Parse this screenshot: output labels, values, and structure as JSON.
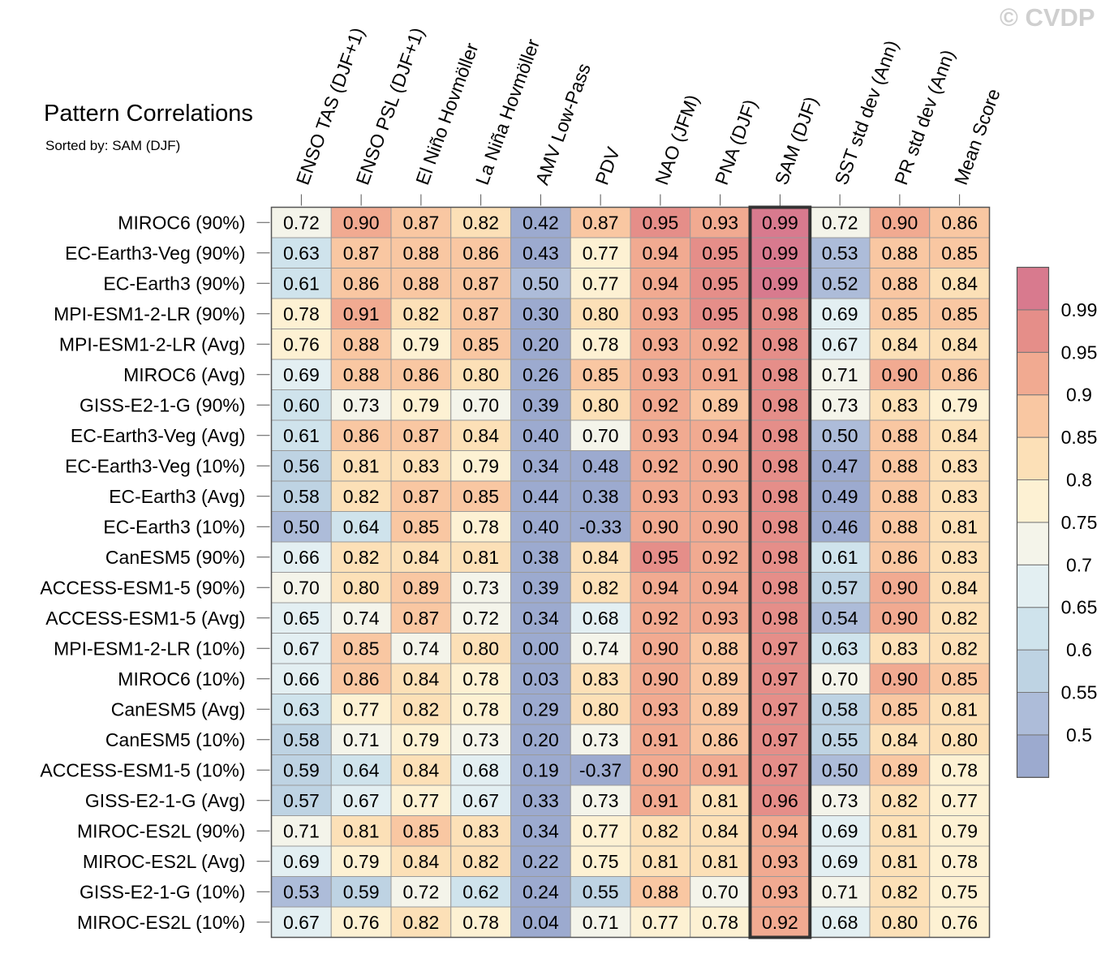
{
  "header": {
    "title": "Pattern Correlations",
    "subtitle": "Sorted by: SAM (DJF)",
    "watermark": "© CVDP"
  },
  "chart_data": {
    "type": "heatmap",
    "title": "Pattern Correlations",
    "subtitle": "Sorted by: SAM (DJF)",
    "columns": [
      "ENSO TAS (DJF+1)",
      "ENSO PSL (DJF+1)",
      "El Niño Hovmöller",
      "La Niña Hovmöller",
      "AMV Low-Pass",
      "PDV",
      "NAO (JFM)",
      "PNA (DJF)",
      "SAM (DJF)",
      "SST std dev (Ann)",
      "PR std dev (Ann)",
      "Mean Score"
    ],
    "highlighted_column": "SAM (DJF)",
    "rows": [
      "MIROC6 (90%)",
      "EC-Earth3-Veg (90%)",
      "EC-Earth3 (90%)",
      "MPI-ESM1-2-LR (90%)",
      "MPI-ESM1-2-LR (Avg)",
      "MIROC6 (Avg)",
      "GISS-E2-1-G (90%)",
      "EC-Earth3-Veg (Avg)",
      "EC-Earth3-Veg (10%)",
      "EC-Earth3 (Avg)",
      "EC-Earth3 (10%)",
      "CanESM5 (90%)",
      "ACCESS-ESM1-5 (90%)",
      "ACCESS-ESM1-5 (Avg)",
      "MPI-ESM1-2-LR (10%)",
      "MIROC6 (10%)",
      "CanESM5 (Avg)",
      "CanESM5 (10%)",
      "ACCESS-ESM1-5 (10%)",
      "GISS-E2-1-G (Avg)",
      "MIROC-ES2L (90%)",
      "MIROC-ES2L (Avg)",
      "GISS-E2-1-G (10%)",
      "MIROC-ES2L (10%)"
    ],
    "values": [
      [
        "0.72",
        "0.90",
        "0.87",
        "0.82",
        "0.42",
        "0.87",
        "0.95",
        "0.93",
        "0.99",
        "0.72",
        "0.90",
        "0.86"
      ],
      [
        "0.63",
        "0.87",
        "0.88",
        "0.86",
        "0.43",
        "0.77",
        "0.94",
        "0.95",
        "0.99",
        "0.53",
        "0.88",
        "0.85"
      ],
      [
        "0.61",
        "0.86",
        "0.88",
        "0.87",
        "0.50",
        "0.77",
        "0.94",
        "0.95",
        "0.99",
        "0.52",
        "0.88",
        "0.84"
      ],
      [
        "0.78",
        "0.91",
        "0.82",
        "0.87",
        "0.30",
        "0.80",
        "0.93",
        "0.95",
        "0.98",
        "0.69",
        "0.85",
        "0.85"
      ],
      [
        "0.76",
        "0.88",
        "0.79",
        "0.85",
        "0.20",
        "0.78",
        "0.93",
        "0.92",
        "0.98",
        "0.67",
        "0.84",
        "0.84"
      ],
      [
        "0.69",
        "0.88",
        "0.86",
        "0.80",
        "0.26",
        "0.85",
        "0.93",
        "0.91",
        "0.98",
        "0.71",
        "0.90",
        "0.86"
      ],
      [
        "0.60",
        "0.73",
        "0.79",
        "0.70",
        "0.39",
        "0.80",
        "0.92",
        "0.89",
        "0.98",
        "0.73",
        "0.83",
        "0.79"
      ],
      [
        "0.61",
        "0.86",
        "0.87",
        "0.84",
        "0.40",
        "0.70",
        "0.93",
        "0.94",
        "0.98",
        "0.50",
        "0.88",
        "0.84"
      ],
      [
        "0.56",
        "0.81",
        "0.83",
        "0.79",
        "0.34",
        "0.48",
        "0.92",
        "0.90",
        "0.98",
        "0.47",
        "0.88",
        "0.83"
      ],
      [
        "0.58",
        "0.82",
        "0.87",
        "0.85",
        "0.44",
        "0.38",
        "0.93",
        "0.93",
        "0.98",
        "0.49",
        "0.88",
        "0.83"
      ],
      [
        "0.50",
        "0.64",
        "0.85",
        "0.78",
        "0.40",
        "-0.33",
        "0.90",
        "0.90",
        "0.98",
        "0.46",
        "0.88",
        "0.81"
      ],
      [
        "0.66",
        "0.82",
        "0.84",
        "0.81",
        "0.38",
        "0.84",
        "0.95",
        "0.92",
        "0.98",
        "0.61",
        "0.86",
        "0.83"
      ],
      [
        "0.70",
        "0.80",
        "0.89",
        "0.73",
        "0.39",
        "0.82",
        "0.94",
        "0.94",
        "0.98",
        "0.57",
        "0.90",
        "0.84"
      ],
      [
        "0.65",
        "0.74",
        "0.87",
        "0.72",
        "0.34",
        "0.68",
        "0.92",
        "0.93",
        "0.98",
        "0.54",
        "0.90",
        "0.82"
      ],
      [
        "0.67",
        "0.85",
        "0.74",
        "0.80",
        "0.00",
        "0.74",
        "0.90",
        "0.88",
        "0.97",
        "0.63",
        "0.83",
        "0.82"
      ],
      [
        "0.66",
        "0.86",
        "0.84",
        "0.78",
        "0.03",
        "0.83",
        "0.90",
        "0.89",
        "0.97",
        "0.70",
        "0.90",
        "0.85"
      ],
      [
        "0.63",
        "0.77",
        "0.82",
        "0.78",
        "0.29",
        "0.80",
        "0.93",
        "0.89",
        "0.97",
        "0.58",
        "0.85",
        "0.81"
      ],
      [
        "0.58",
        "0.71",
        "0.79",
        "0.73",
        "0.20",
        "0.73",
        "0.91",
        "0.86",
        "0.97",
        "0.55",
        "0.84",
        "0.80"
      ],
      [
        "0.59",
        "0.64",
        "0.84",
        "0.68",
        "0.19",
        "-0.37",
        "0.90",
        "0.91",
        "0.97",
        "0.50",
        "0.89",
        "0.78"
      ],
      [
        "0.57",
        "0.67",
        "0.77",
        "0.67",
        "0.33",
        "0.73",
        "0.91",
        "0.81",
        "0.96",
        "0.73",
        "0.82",
        "0.77"
      ],
      [
        "0.71",
        "0.81",
        "0.85",
        "0.83",
        "0.34",
        "0.77",
        "0.82",
        "0.84",
        "0.94",
        "0.69",
        "0.81",
        "0.79"
      ],
      [
        "0.69",
        "0.79",
        "0.84",
        "0.82",
        "0.22",
        "0.75",
        "0.81",
        "0.81",
        "0.93",
        "0.69",
        "0.81",
        "0.78"
      ],
      [
        "0.53",
        "0.59",
        "0.72",
        "0.62",
        "0.24",
        "0.55",
        "0.88",
        "0.70",
        "0.93",
        "0.71",
        "0.82",
        "0.75"
      ],
      [
        "0.67",
        "0.76",
        "0.82",
        "0.78",
        "0.04",
        "0.71",
        "0.77",
        "0.78",
        "0.92",
        "0.68",
        "0.80",
        "0.76"
      ]
    ],
    "colorbar": {
      "levels": [
        "0.5",
        "0.55",
        "0.6",
        "0.65",
        "0.7",
        "0.75",
        "0.8",
        "0.85",
        "0.9",
        "0.95",
        "0.99"
      ],
      "colors": [
        "#9caacf",
        "#adbcd9",
        "#bed3e3",
        "#cfe3ec",
        "#e3eff2",
        "#f4f4ea",
        "#fdf1d3",
        "#fce0b7",
        "#f9c7a2",
        "#f1aa91",
        "#e58e89",
        "#d87a8e"
      ]
    }
  }
}
